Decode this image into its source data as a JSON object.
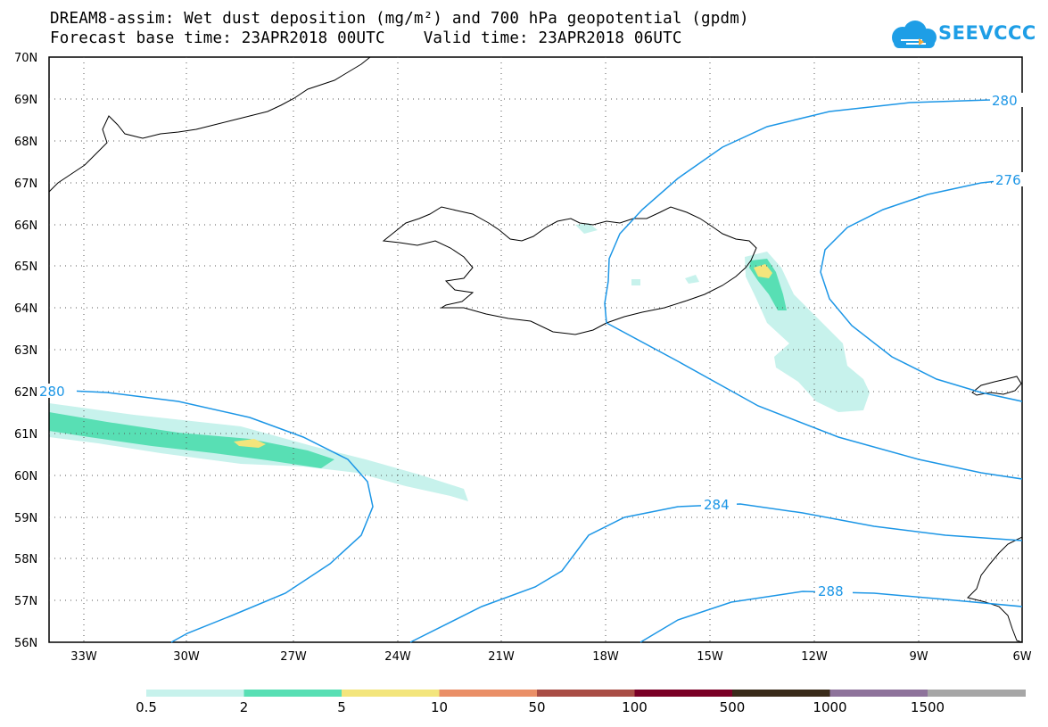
{
  "header": {
    "title_line1": "DREAM8-assim: Wet dust deposition (mg/m²) and 700 hPa geopotential (gpdm)",
    "title_line2": "Forecast base time: 23APR2018 00UTC    Valid time: 23APR2018 06UTC",
    "logo_text": "SEEVCCC"
  },
  "map": {
    "lat_labels": [
      "70N",
      "69N",
      "68N",
      "67N",
      "66N",
      "65N",
      "64N",
      "63N",
      "62N",
      "61N",
      "60N",
      "59N",
      "58N",
      "57N",
      "56N"
    ],
    "lon_labels": [
      "33W",
      "30W",
      "27W",
      "24W",
      "21W",
      "18W",
      "15W",
      "12W",
      "9W",
      "6W"
    ],
    "contour_labels": [
      "280",
      "280",
      "276",
      "284",
      "288"
    ],
    "colors": {
      "contour": "#1c96e6",
      "coast": "#000000",
      "level_0_5": "#c7f2ec",
      "level_2": "#58dfb4",
      "level_5": "#f3e57c"
    }
  },
  "colorbar": {
    "labels": [
      "0.5",
      "2",
      "5",
      "10",
      "50",
      "100",
      "500",
      "1000",
      "1500"
    ],
    "colors": [
      "#c7f2ec",
      "#58dfb4",
      "#f3e57c",
      "#ea8f67",
      "#a94d45",
      "#7a0026",
      "#3a2b1a",
      "#8e739b",
      "#a6a6a6"
    ]
  }
}
